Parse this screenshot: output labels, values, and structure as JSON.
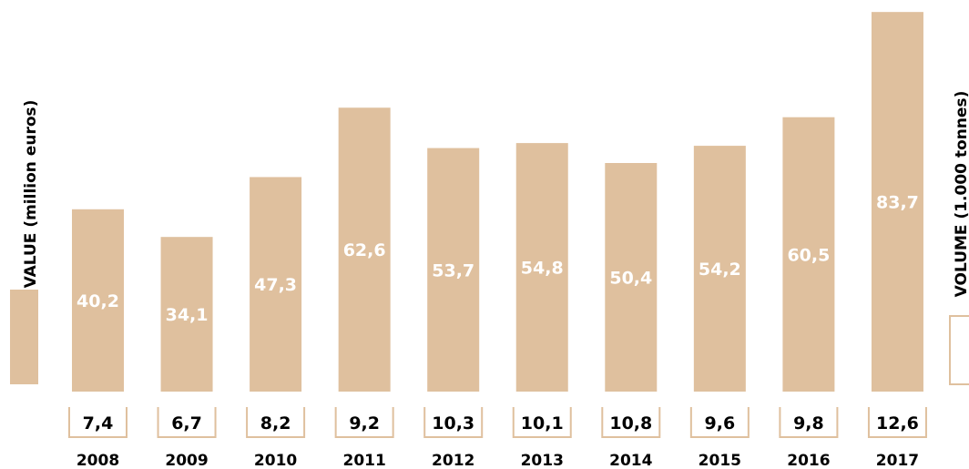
{
  "chart_data": {
    "type": "bar",
    "categories": [
      "2008",
      "2009",
      "2010",
      "2011",
      "2012",
      "2013",
      "2014",
      "2015",
      "2016",
      "2017"
    ],
    "series": [
      {
        "name": "VALUE (million euros)",
        "values": [
          40.2,
          34.1,
          47.3,
          62.6,
          53.7,
          54.8,
          50.4,
          54.2,
          60.5,
          83.7
        ],
        "labels": [
          "40,2",
          "34,1",
          "47,3",
          "62,6",
          "53,7",
          "54,8",
          "50,4",
          "54,2",
          "60,5",
          "83,7"
        ],
        "color": "#dfc09e"
      },
      {
        "name": "VOLUME (1.000 tonnes)",
        "values": [
          7.4,
          6.7,
          8.2,
          9.2,
          10.3,
          10.1,
          10.8,
          9.6,
          9.8,
          12.6
        ],
        "labels": [
          "7,4",
          "6,7",
          "8,2",
          "9,2",
          "10,3",
          "10,1",
          "10,8",
          "9,6",
          "9,8",
          "12,6"
        ],
        "color": "#dfc09e"
      }
    ],
    "ylabel_left": "VALUE (million euros)",
    "ylabel_right": "VOLUME (1.000 tonnes)",
    "legend": "left and right sides"
  }
}
